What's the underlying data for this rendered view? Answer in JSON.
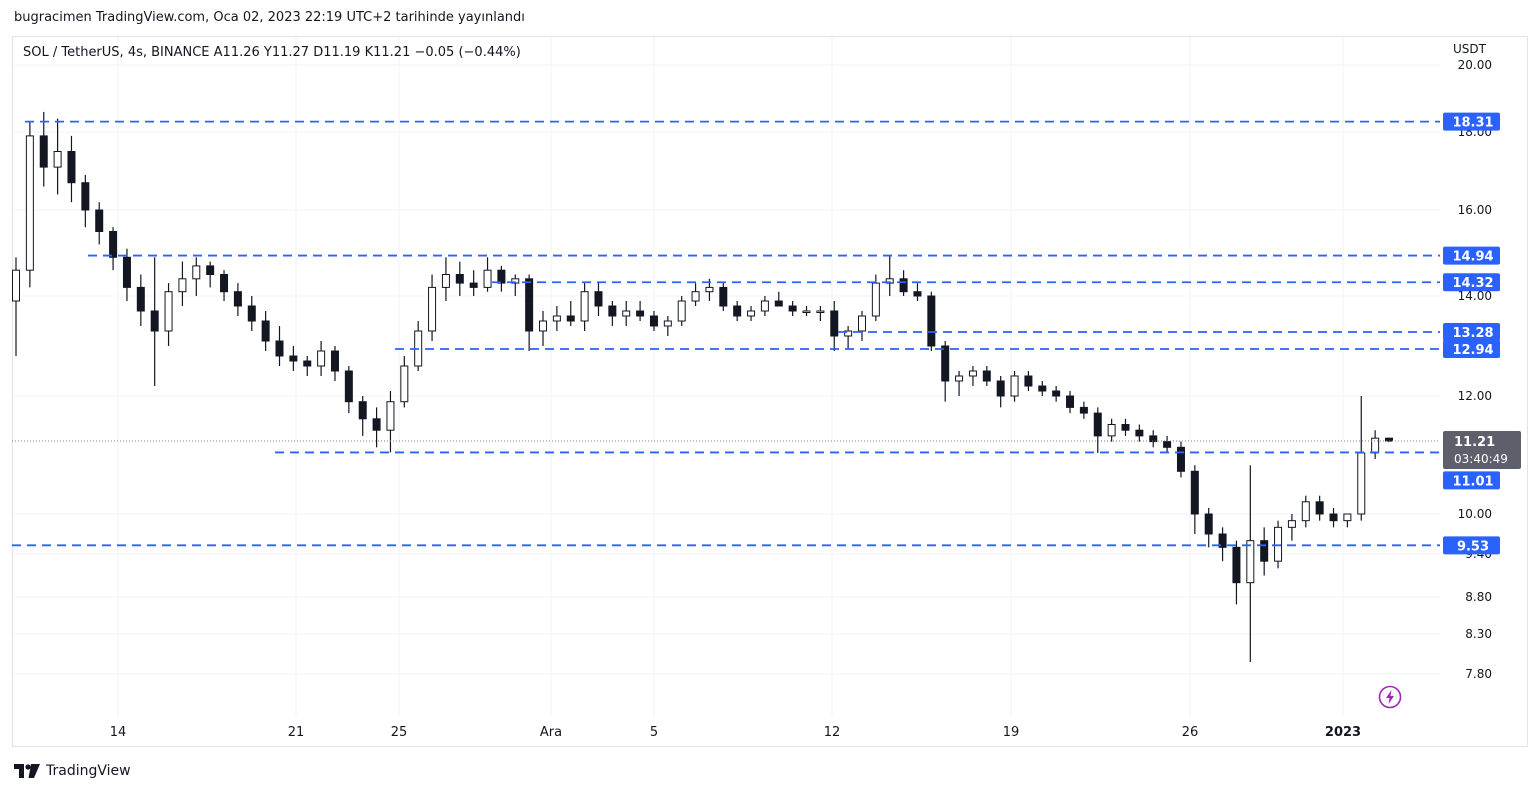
{
  "published": "bugracimen TradingView.com, Oca 02, 2023 22:19 UTC+2 tarihinde yayınlandı",
  "legend": {
    "symbol": "SOL / TetherUS, 4s, BINANCE",
    "open": "A11.26",
    "high": "Y11.27",
    "low": "D11.19",
    "close": "K11.21",
    "change": "−0.05 (−0.44%)"
  },
  "currency": "USDT",
  "footer": {
    "brand": "TradingView"
  },
  "colors": {
    "line_blue": "#2962ff",
    "candle": "#131722",
    "grid": "#f0f3fa",
    "price_tag": "#5d606b",
    "alert_icon": "#9c27b0"
  },
  "chart_data": {
    "type": "candlestick",
    "axis_scale": "nonlinear (log-like)",
    "x_ticks": [
      "14",
      "21",
      "25",
      "Ara",
      "5",
      "12",
      "19",
      "26",
      "2023"
    ],
    "y_ticks": [
      20.0,
      18.0,
      16.0,
      14.0,
      12.0,
      10.0,
      9.4,
      8.8,
      8.3,
      7.8
    ],
    "y_tick_labels": [
      "20.00",
      "18.00",
      "16.00",
      "14.00",
      "12.00",
      "10.00",
      "9.40",
      "8.80",
      "8.30",
      "7.80"
    ],
    "horizontal_levels": [
      {
        "value": 18.31,
        "label": "18.31"
      },
      {
        "value": 14.94,
        "label": "14.94"
      },
      {
        "value": 14.32,
        "label": "14.32"
      },
      {
        "value": 13.28,
        "label": "13.28"
      },
      {
        "value": 12.94,
        "label": "12.94"
      },
      {
        "value": 11.01,
        "label": "11.01"
      },
      {
        "value": 9.53,
        "label": "9.53"
      }
    ],
    "last_price": {
      "value": 11.21,
      "label": "11.21",
      "countdown": "03:40:49"
    },
    "series": [
      {
        "values": [
          [
            13.9,
            14.9,
            12.8,
            14.6
          ],
          [
            14.6,
            18.3,
            14.2,
            17.9
          ],
          [
            17.9,
            18.6,
            16.6,
            17.1
          ],
          [
            17.1,
            18.4,
            16.4,
            17.5
          ],
          [
            17.5,
            17.9,
            16.2,
            16.7
          ],
          [
            16.7,
            16.9,
            15.6,
            16.0
          ],
          [
            16.0,
            16.2,
            15.2,
            15.5
          ],
          [
            15.5,
            15.6,
            14.6,
            14.9
          ],
          [
            14.9,
            15.1,
            13.9,
            14.2
          ],
          [
            14.2,
            14.5,
            13.4,
            13.7
          ],
          [
            13.7,
            14.9,
            12.2,
            13.3
          ],
          [
            13.3,
            14.3,
            13.0,
            14.1
          ],
          [
            14.1,
            14.8,
            13.8,
            14.4
          ],
          [
            14.4,
            14.9,
            14.0,
            14.7
          ],
          [
            14.7,
            14.8,
            14.2,
            14.5
          ],
          [
            14.5,
            14.6,
            13.9,
            14.1
          ],
          [
            14.1,
            14.3,
            13.6,
            13.8
          ],
          [
            13.8,
            14.0,
            13.3,
            13.5
          ],
          [
            13.5,
            13.7,
            12.9,
            13.1
          ],
          [
            13.1,
            13.4,
            12.6,
            12.8
          ],
          [
            12.8,
            13.0,
            12.5,
            12.7
          ],
          [
            12.7,
            12.8,
            12.4,
            12.6
          ],
          [
            12.6,
            13.1,
            12.4,
            12.9
          ],
          [
            12.9,
            13.0,
            12.3,
            12.5
          ],
          [
            12.5,
            12.6,
            11.7,
            11.9
          ],
          [
            11.9,
            12.0,
            11.3,
            11.6
          ],
          [
            11.6,
            11.8,
            11.1,
            11.4
          ],
          [
            11.4,
            12.1,
            11.01,
            11.9
          ],
          [
            11.9,
            12.8,
            11.8,
            12.6
          ],
          [
            12.6,
            13.5,
            12.5,
            13.3
          ],
          [
            13.3,
            14.5,
            13.1,
            14.2
          ],
          [
            14.2,
            14.9,
            13.9,
            14.5
          ],
          [
            14.5,
            14.8,
            14.0,
            14.3
          ],
          [
            14.3,
            14.6,
            14.0,
            14.2
          ],
          [
            14.2,
            14.9,
            14.1,
            14.6
          ],
          [
            14.6,
            14.7,
            14.1,
            14.3
          ],
          [
            14.3,
            14.5,
            14.0,
            14.4
          ],
          [
            14.4,
            14.5,
            12.9,
            13.3
          ],
          [
            13.3,
            13.7,
            13.0,
            13.5
          ],
          [
            13.5,
            13.8,
            13.3,
            13.6
          ],
          [
            13.6,
            13.9,
            13.4,
            13.5
          ],
          [
            13.5,
            14.3,
            13.3,
            14.1
          ],
          [
            14.1,
            14.3,
            13.6,
            13.8
          ],
          [
            13.8,
            13.9,
            13.4,
            13.6
          ],
          [
            13.6,
            13.9,
            13.4,
            13.7
          ],
          [
            13.7,
            13.9,
            13.5,
            13.6
          ],
          [
            13.6,
            13.7,
            13.3,
            13.4
          ],
          [
            13.4,
            13.6,
            13.2,
            13.5
          ],
          [
            13.5,
            14.0,
            13.4,
            13.9
          ],
          [
            13.9,
            14.3,
            13.8,
            14.1
          ],
          [
            14.1,
            14.4,
            13.9,
            14.2
          ],
          [
            14.2,
            14.3,
            13.7,
            13.8
          ],
          [
            13.8,
            13.9,
            13.5,
            13.6
          ],
          [
            13.6,
            13.8,
            13.5,
            13.7
          ],
          [
            13.7,
            14.0,
            13.6,
            13.9
          ],
          [
            13.9,
            14.1,
            13.8,
            13.8
          ],
          [
            13.8,
            13.9,
            13.6,
            13.7
          ],
          [
            13.7,
            13.8,
            13.6,
            13.7
          ],
          [
            13.7,
            13.8,
            13.5,
            13.7
          ],
          [
            13.7,
            13.9,
            12.9,
            13.2
          ],
          [
            13.2,
            13.4,
            12.95,
            13.3
          ],
          [
            13.3,
            13.7,
            13.1,
            13.6
          ],
          [
            13.6,
            14.5,
            13.5,
            14.3
          ],
          [
            14.3,
            14.94,
            14.0,
            14.4
          ],
          [
            14.4,
            14.6,
            14.0,
            14.1
          ],
          [
            14.1,
            14.3,
            13.9,
            14.0
          ],
          [
            14.0,
            14.1,
            12.9,
            13.0
          ],
          [
            13.0,
            13.1,
            11.9,
            12.3
          ],
          [
            12.3,
            12.5,
            12.0,
            12.4
          ],
          [
            12.4,
            12.6,
            12.2,
            12.5
          ],
          [
            12.5,
            12.6,
            12.2,
            12.3
          ],
          [
            12.3,
            12.4,
            11.8,
            12.0
          ],
          [
            12.0,
            12.5,
            11.9,
            12.4
          ],
          [
            12.4,
            12.5,
            12.1,
            12.2
          ],
          [
            12.2,
            12.3,
            12.0,
            12.1
          ],
          [
            12.1,
            12.2,
            11.9,
            12.0
          ],
          [
            12.0,
            12.1,
            11.7,
            11.8
          ],
          [
            11.8,
            11.9,
            11.6,
            11.7
          ],
          [
            11.7,
            11.8,
            11.0,
            11.3
          ],
          [
            11.3,
            11.6,
            11.2,
            11.5
          ],
          [
            11.5,
            11.6,
            11.3,
            11.4
          ],
          [
            11.4,
            11.5,
            11.2,
            11.3
          ],
          [
            11.3,
            11.4,
            11.1,
            11.2
          ],
          [
            11.2,
            11.3,
            11.0,
            11.1
          ],
          [
            11.1,
            11.2,
            10.6,
            10.7
          ],
          [
            10.7,
            10.8,
            9.7,
            10.0
          ],
          [
            10.0,
            10.1,
            9.5,
            9.7
          ],
          [
            9.7,
            9.8,
            9.3,
            9.5
          ],
          [
            9.5,
            9.6,
            8.7,
            9.0
          ],
          [
            9.0,
            10.8,
            7.95,
            9.6
          ],
          [
            9.6,
            9.8,
            9.1,
            9.3
          ],
          [
            9.3,
            9.9,
            9.2,
            9.8
          ],
          [
            9.8,
            10.0,
            9.6,
            9.9
          ],
          [
            9.9,
            10.3,
            9.8,
            10.2
          ],
          [
            10.2,
            10.3,
            9.9,
            10.0
          ],
          [
            10.0,
            10.1,
            9.8,
            9.9
          ],
          [
            9.9,
            10.0,
            9.8,
            10.0
          ],
          [
            10.0,
            12.0,
            9.9,
            11.0
          ],
          [
            11.0,
            11.4,
            10.9,
            11.26
          ],
          [
            11.26,
            11.27,
            11.19,
            11.21
          ]
        ]
      }
    ]
  }
}
